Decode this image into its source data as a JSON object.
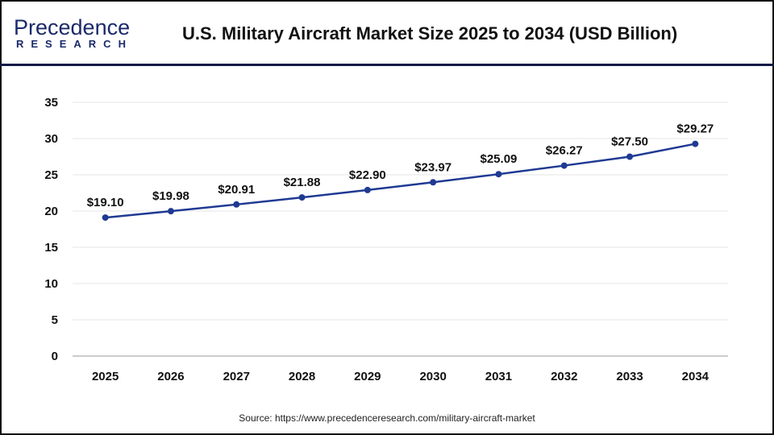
{
  "logo": {
    "line1": "Precedence",
    "line2": "RESEARCH"
  },
  "header": {
    "title": "U.S. Military Aircraft Market Size 2025 to 2034 (USD Billion)"
  },
  "source": "Source: https://www.precedenceresearch.com/military-aircraft-market",
  "chart_data": {
    "type": "line",
    "title": "U.S. Military Aircraft Market Size 2025 to 2034 (USD Billion)",
    "categories": [
      "2025",
      "2026",
      "2027",
      "2028",
      "2029",
      "2030",
      "2031",
      "2032",
      "2033",
      "2034"
    ],
    "values": [
      19.1,
      19.98,
      20.91,
      21.88,
      22.9,
      23.97,
      25.09,
      26.27,
      27.5,
      29.27
    ],
    "data_labels": [
      "$19.10",
      "$19.98",
      "$20.91",
      "$21.88",
      "$22.90",
      "$23.97",
      "$25.09",
      "$26.27",
      "$27.50",
      "$29.27"
    ],
    "yticks": [
      "0",
      "5",
      "10",
      "15",
      "20",
      "25",
      "30",
      "35"
    ],
    "ylim": [
      0,
      35
    ],
    "grid": true,
    "line_color": "#1f3a93",
    "xlabel": "",
    "ylabel": ""
  }
}
